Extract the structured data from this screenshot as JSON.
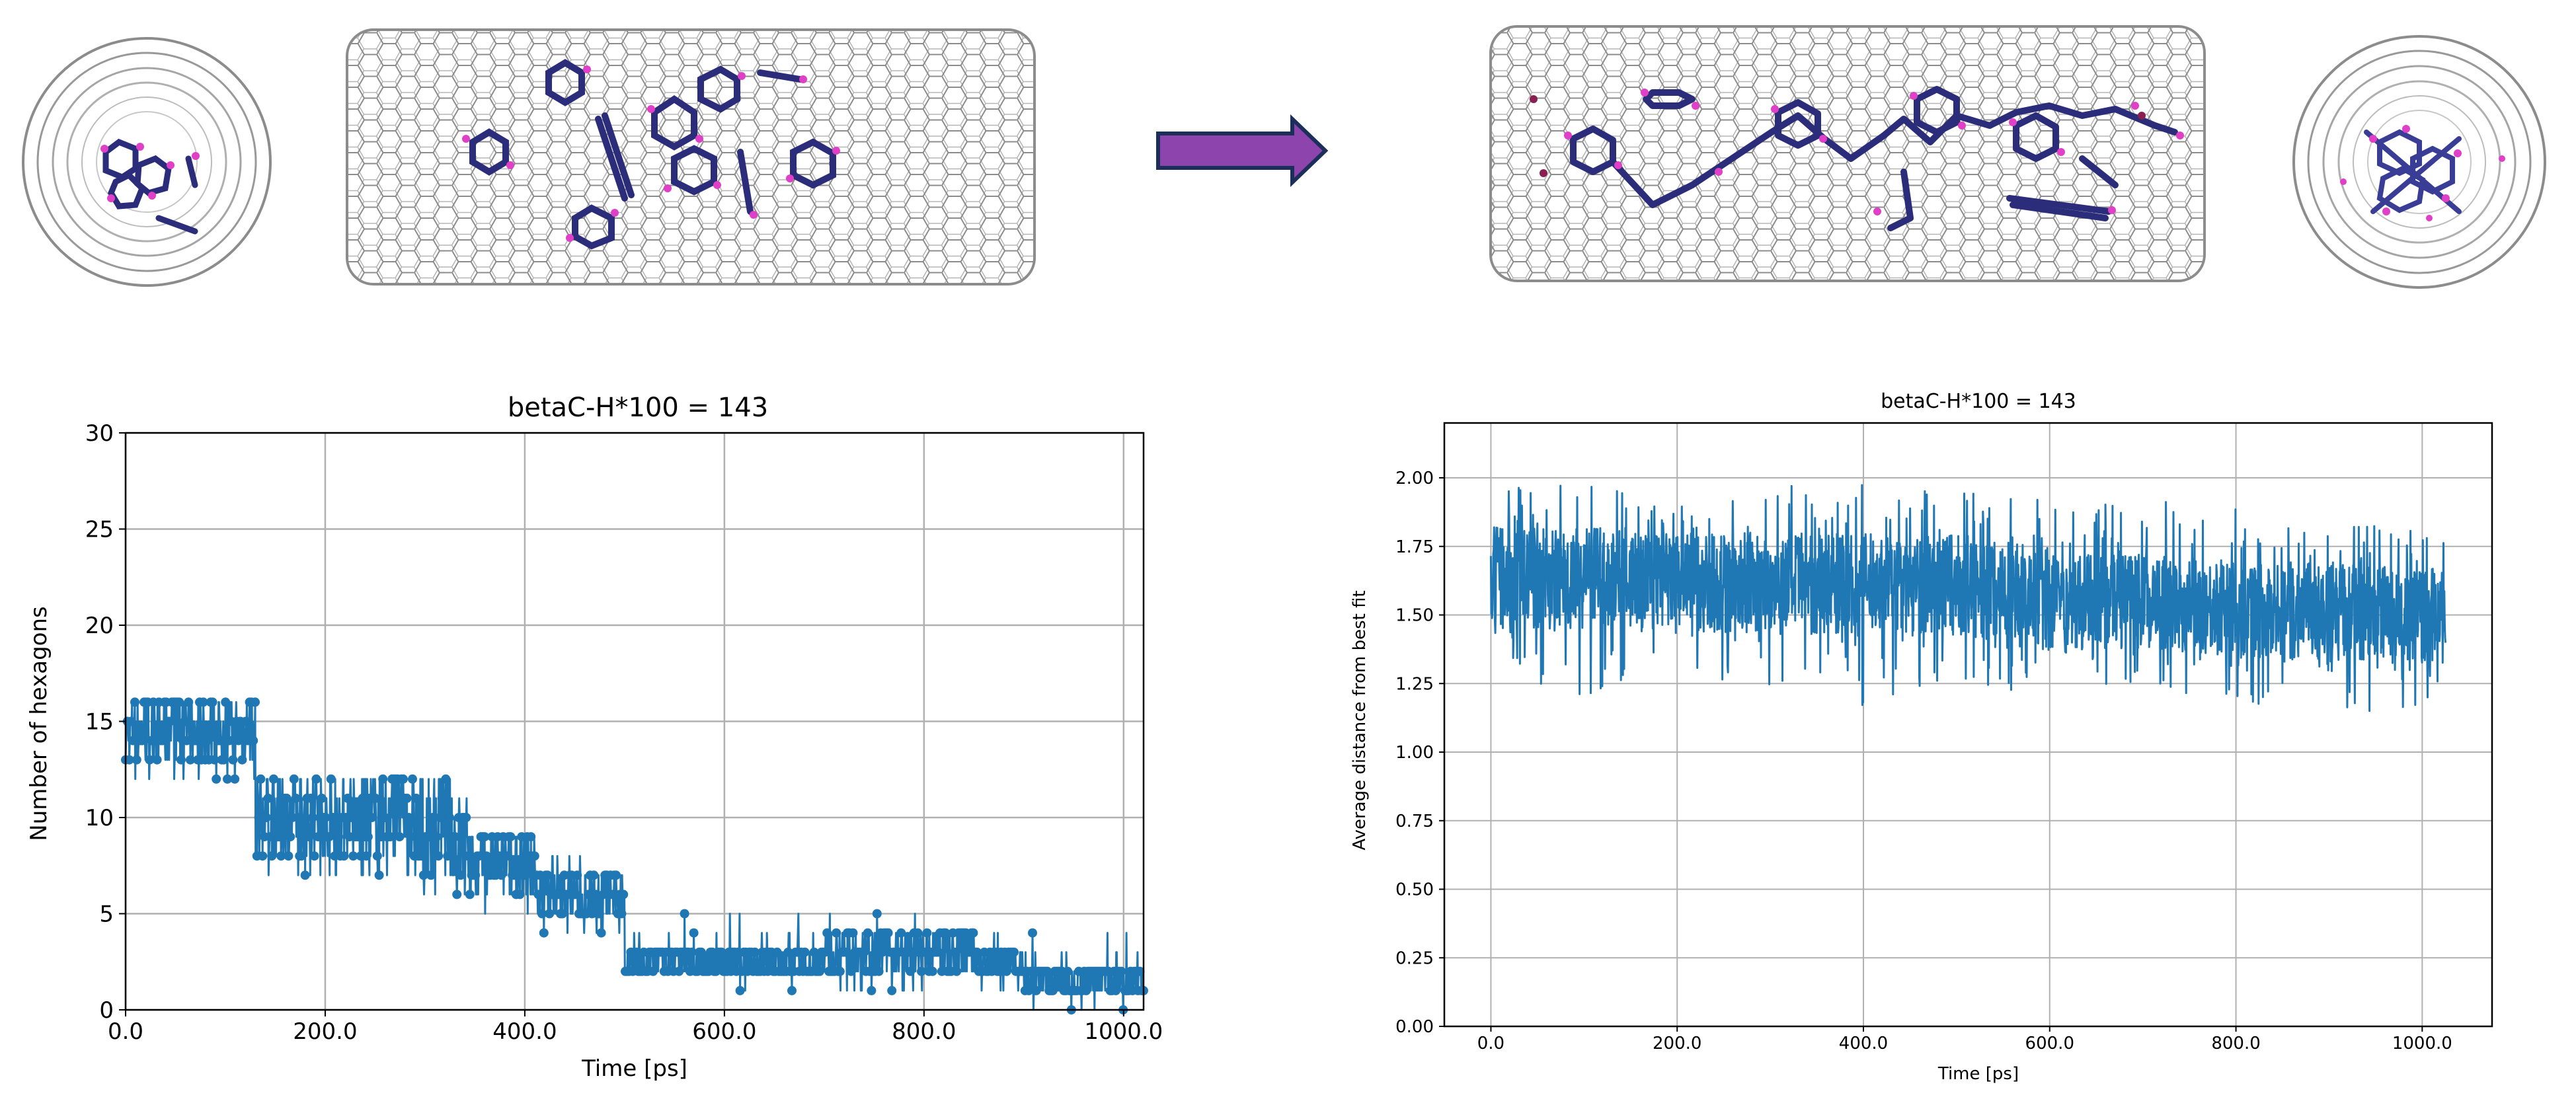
{
  "colors": {
    "series": "#1f77b4",
    "series_dark": "#1a4f86",
    "grid": "#b0b0b0",
    "tube": "#8c8c8c",
    "molecule_bond": "#2b2d7a",
    "molecule_h": "#e040c8",
    "arrow_fill": "#8e44ad",
    "arrow_stroke": "#1b2f5a"
  },
  "icons": {
    "transition_arrow": "right-arrow-icon",
    "nanotube": "carbon-nanotube-icon",
    "molecule": "aromatic-molecule-icon"
  },
  "chart_data": [
    {
      "type": "line",
      "title": "betaC-H*100 = 143",
      "xlabel": "Time [ps]",
      "ylabel": "Number of hexagons",
      "xlim": [
        0,
        1020
      ],
      "ylim": [
        0,
        30
      ],
      "xticks": [
        0,
        200,
        400,
        600,
        800,
        1000
      ],
      "xtick_labels": [
        "0.0",
        "200.0",
        "400.0",
        "600.0",
        "800.0",
        "1000.0"
      ],
      "yticks": [
        0,
        5,
        10,
        15,
        20,
        25,
        30
      ],
      "ytick_labels": [
        "0",
        "5",
        "10",
        "15",
        "20",
        "25",
        "30"
      ],
      "grid": true,
      "marker": "circle",
      "series": [
        {
          "name": "hexagons",
          "x": [
            0,
            125,
            130,
            200,
            285,
            330,
            345,
            400,
            410,
            490,
            500,
            600,
            700,
            800,
            850,
            900,
            1020
          ],
          "y": [
            15,
            15,
            11,
            11,
            10,
            9,
            8,
            8,
            6,
            6,
            2.5,
            2.5,
            3,
            2.5,
            2.5,
            1.5,
            1.5
          ],
          "band_min": [
            13,
            11,
            8,
            8,
            7,
            6,
            6,
            6,
            5,
            5,
            2,
            2,
            2,
            2,
            2,
            1,
            1
          ],
          "band_max": [
            16,
            16,
            12,
            12,
            12,
            11,
            9,
            9,
            7,
            7,
            3,
            3,
            4,
            4,
            3,
            2,
            3
          ],
          "spike_min": [
            12,
            9,
            7,
            7,
            6,
            6,
            5,
            5,
            4,
            4,
            2,
            1,
            1,
            1,
            1,
            0,
            0
          ],
          "spike_max": [
            16,
            16,
            12,
            12,
            12,
            11,
            9,
            9,
            8,
            8,
            5,
            5,
            5,
            4,
            4,
            4,
            4
          ]
        }
      ]
    },
    {
      "type": "line",
      "title": "betaC-H*100 = 143",
      "xlabel": "Time [ps]",
      "ylabel": "Average distance from best fit",
      "xlim": [
        -50,
        1075
      ],
      "ylim": [
        0,
        2.2
      ],
      "xticks": [
        0,
        200,
        400,
        600,
        800,
        1000
      ],
      "xtick_labels": [
        "0.0",
        "200.0",
        "400.0",
        "600.0",
        "800.0",
        "1000.0"
      ],
      "yticks": [
        0,
        0.25,
        0.5,
        0.75,
        1.0,
        1.25,
        1.5,
        1.75,
        2.0
      ],
      "ytick_labels": [
        "0.00",
        "0.25",
        "0.50",
        "0.75",
        "1.00",
        "1.25",
        "1.50",
        "1.75",
        "2.00"
      ],
      "grid": true,
      "series": [
        {
          "name": "distance",
          "x": [
            0,
            100,
            200,
            300,
            400,
            500,
            570,
            600,
            700,
            800,
            900,
            1025
          ],
          "y": [
            1.65,
            1.65,
            1.63,
            1.62,
            1.63,
            1.62,
            1.62,
            1.55,
            1.55,
            1.53,
            1.52,
            1.5
          ],
          "band_min": [
            1.45,
            1.45,
            1.44,
            1.43,
            1.43,
            1.42,
            1.42,
            1.37,
            1.38,
            1.35,
            1.33,
            1.32
          ],
          "band_max": [
            1.82,
            1.82,
            1.8,
            1.8,
            1.8,
            1.79,
            1.79,
            1.72,
            1.72,
            1.7,
            1.69,
            1.67
          ],
          "spike_min": [
            1.3,
            1.2,
            1.25,
            1.22,
            1.17,
            1.25,
            1.2,
            1.2,
            1.2,
            1.2,
            1.1,
            1.15
          ],
          "spike_max": [
            1.95,
            2.03,
            1.92,
            1.97,
            2.0,
            1.95,
            1.95,
            1.9,
            1.92,
            1.97,
            1.85,
            1.8
          ]
        }
      ]
    }
  ]
}
